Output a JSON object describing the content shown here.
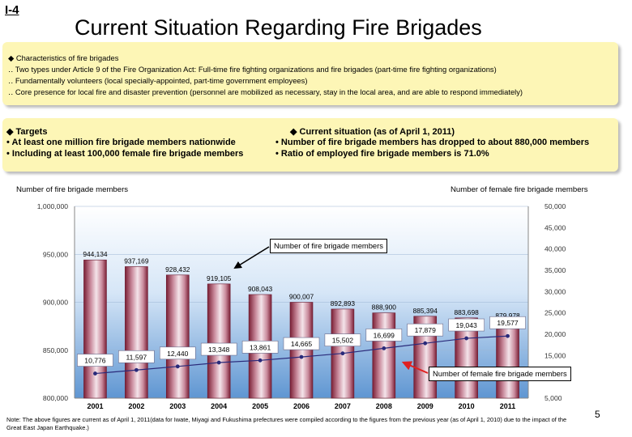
{
  "slide_id": "I-4",
  "title": "Current Situation Regarding Fire Brigades",
  "characteristics": {
    "heading": "◆ Characteristics of fire brigades",
    "lines": [
      "‥ Two types under Article 9 of the Fire Organization Act: Full-time fire fighting organizations and fire brigades (part-time fire fighting organizations)",
      "‥ Fundamentally volunteers (local specially-appointed, part-time government employees)",
      "‥ Core presence for local fire and disaster prevention (personnel are mobilized as necessary, stay in the local area, and are able to respond immediately)"
    ]
  },
  "targets": {
    "heading": "◆ Targets",
    "lines": [
      "• At least one million fire brigade members nationwide",
      "• Including at least 100,000 female fire brigade members"
    ]
  },
  "situation": {
    "heading": "◆ Current situation (as of April 1, 2011)",
    "lines": [
      "• Number of fire brigade members has dropped to about 880,000 members",
      "• Ratio of employed fire brigade members is 71.0%"
    ]
  },
  "left_axis_title": "Number of fire brigade members",
  "right_axis_title": "Number of female fire brigade members",
  "callout_members": "Number of fire brigade members",
  "callout_female": "Number of female fire brigade members",
  "note": "Note: The above figures are current as of April 1, 2011(data for Iwate, Miyagi and Fukushima prefectures were compiled according to the figures from the previous year (as of April 1, 2010) due to the impact of the Great East Japan Earthquake.)",
  "page_number": "5",
  "colors": {
    "box_fill": "#fdf6b6",
    "bar_dark": "#7a1f35",
    "bar_light": "#f4e4ea",
    "line": "#2a2a7a",
    "arrow": "#e02020"
  },
  "chart_data": {
    "type": "bar",
    "categories": [
      "2001",
      "2002",
      "2003",
      "2004",
      "2005",
      "2006",
      "2007",
      "2008",
      "2009",
      "2010",
      "2011"
    ],
    "series": [
      {
        "name": "Number of fire brigade members",
        "type": "bar",
        "axis": "left",
        "values": [
          944134,
          937169,
          928432,
          919105,
          908043,
          900007,
          892893,
          888900,
          885394,
          883698,
          879978
        ],
        "labels": [
          "944,134",
          "937,169",
          "928,432",
          "919,105",
          "908,043",
          "900,007",
          "892,893",
          "888,900",
          "885,394",
          "883,698",
          "879,978"
        ]
      },
      {
        "name": "Number of female fire brigade members",
        "type": "line",
        "axis": "right",
        "values": [
          10776,
          11597,
          12440,
          13348,
          13861,
          14665,
          15502,
          16699,
          17879,
          19043,
          19577
        ],
        "labels": [
          "10,776",
          "11,597",
          "12,440",
          "13,348",
          "13,861",
          "14,665",
          "15,502",
          "16,699",
          "17,879",
          "19,043",
          "19,577"
        ]
      }
    ],
    "left_axis": {
      "ylim": [
        800000,
        1000000
      ],
      "ticks": [
        "800,000",
        "850,000",
        "900,000",
        "950,000",
        "1,000,000"
      ],
      "tick_values": [
        800000,
        850000,
        900000,
        950000,
        1000000
      ]
    },
    "right_axis": {
      "ylim": [
        5000,
        50000
      ],
      "ticks": [
        "5,000",
        "10,000",
        "15,000",
        "20,000",
        "25,000",
        "30,000",
        "35,000",
        "40,000",
        "45,000",
        "50,000"
      ],
      "tick_values": [
        5000,
        10000,
        15000,
        20000,
        25000,
        30000,
        35000,
        40000,
        45000,
        50000
      ]
    }
  }
}
